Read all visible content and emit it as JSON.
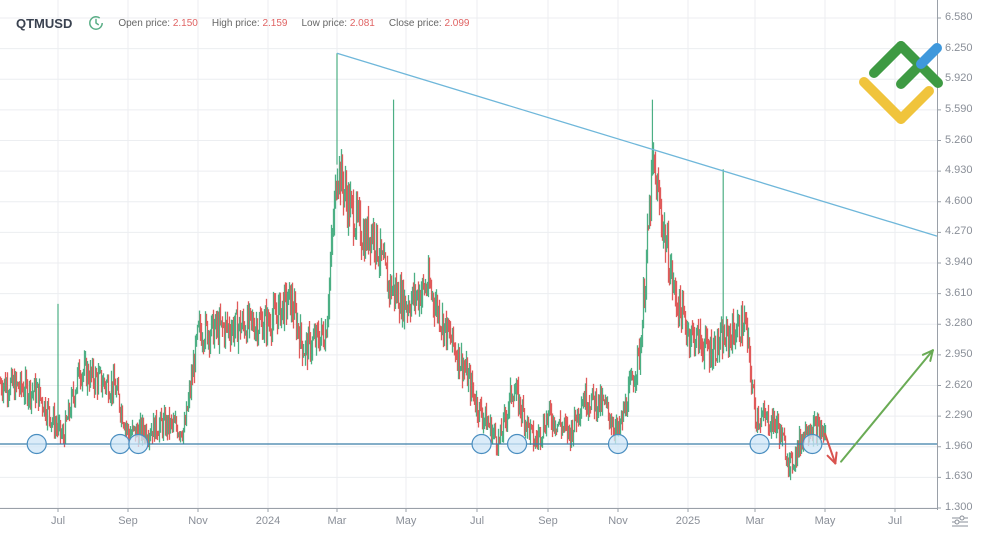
{
  "header": {
    "symbol": "QTMUSD",
    "clock_icon": "clock-refresh-icon",
    "open_label": "Open price:",
    "open_value": "2.150",
    "high_label": "High price:",
    "high_value": "2.159",
    "low_label": "Low price:",
    "low_value": "2.081",
    "close_label": "Close price:",
    "close_value": "2.099"
  },
  "colors": {
    "bull": "#4caf84",
    "bear": "#e05a5a",
    "trendline": "#6fb7da",
    "support_line": "#3a7ea8",
    "circle_fill": "#cfe6f7",
    "circle_stroke": "#4a8ec0",
    "arrow_up": "#6aab55",
    "arrow_down": "#d9534f",
    "grid": "#eceef1",
    "axis": "#8a8f98"
  },
  "axis": {
    "y_ticks": [
      "6.580",
      "6.250",
      "5.920",
      "5.590",
      "5.260",
      "4.930",
      "4.600",
      "4.270",
      "3.940",
      "3.610",
      "3.280",
      "2.950",
      "2.620",
      "2.290",
      "1.960",
      "1.630",
      "1.300"
    ],
    "x_ticks": [
      "Jul",
      "Sep",
      "Nov",
      "2024",
      "Mar",
      "May",
      "Jul",
      "Sep",
      "Nov",
      "2025",
      "Mar",
      "May",
      "Jul"
    ]
  },
  "logo": "company-logo-icon",
  "settings_icon": "chart-settings-icon",
  "chart_data": {
    "type": "candlestick",
    "title": "QTMUSD",
    "xlabel": "",
    "ylabel": "",
    "ylim": [
      1.3,
      6.58
    ],
    "x_range": [
      "2023-06",
      "2025-08"
    ],
    "grid": true,
    "x_ticks": [
      "Jul 2023",
      "Sep 2023",
      "Nov 2023",
      "2024",
      "Mar 2024",
      "May 2024",
      "Jul 2024",
      "Sep 2024",
      "Nov 2024",
      "2025",
      "Mar 2025",
      "May 2025",
      "Jul 2025"
    ],
    "y_ticks": [
      6.58,
      6.25,
      5.92,
      5.59,
      5.26,
      4.93,
      4.6,
      4.27,
      3.94,
      3.61,
      3.28,
      2.95,
      2.62,
      2.29,
      1.96,
      1.63,
      1.3
    ],
    "ohlc_last": {
      "open": 2.15,
      "high": 2.159,
      "low": 2.081,
      "close": 2.099
    },
    "approx_close_path": {
      "x": [
        "2023-06",
        "2023-06-20",
        "2023-07-05",
        "2023-07-20",
        "2023-08",
        "2023-08-20",
        "2023-09",
        "2023-09-20",
        "2023-10",
        "2023-10-20",
        "2023-11",
        "2023-12",
        "2024-01",
        "2024-01-20",
        "2024-02",
        "2024-02-20",
        "2024-03",
        "2024-03-10",
        "2024-03-25",
        "2024-04",
        "2024-04-15",
        "2024-05",
        "2024-05-20",
        "2024-06",
        "2024-06-20",
        "2024-07",
        "2024-07-20",
        "2024-08",
        "2024-08-20",
        "2024-09",
        "2024-09-20",
        "2024-10",
        "2024-10-20",
        "2024-11",
        "2024-11-20",
        "2024-12",
        "2024-12-20",
        "2025-01",
        "2025-01-20",
        "2025-02",
        "2025-02-20",
        "2025-03",
        "2025-03-20",
        "2025-04",
        "2025-04-15",
        "2025-05"
      ],
      "close": [
        2.65,
        2.55,
        2.05,
        2.8,
        2.7,
        2.6,
        2.1,
        2.15,
        2.2,
        2.15,
        3.2,
        3.25,
        3.3,
        3.55,
        3.0,
        3.2,
        5.0,
        4.6,
        4.2,
        4.3,
        3.7,
        3.5,
        3.7,
        3.3,
        2.8,
        2.4,
        2.0,
        2.6,
        2.0,
        2.3,
        2.1,
        2.5,
        2.4,
        2.1,
        3.0,
        5.0,
        3.6,
        3.2,
        3.0,
        3.1,
        3.3,
        2.3,
        2.2,
        1.75,
        2.2,
        2.1
      ],
      "notable_highs": [
        {
          "x": "2023-07",
          "y": 3.5
        },
        {
          "x": "2024-03",
          "y": 6.2
        },
        {
          "x": "2024-04-20",
          "y": 5.7
        },
        {
          "x": "2024-12",
          "y": 5.7
        },
        {
          "x": "2025-02",
          "y": 4.95
        }
      ],
      "notable_lows": [
        {
          "x": "2025-04",
          "y": 1.6
        }
      ]
    },
    "annotations": {
      "descending_trendline": {
        "from": {
          "x": "2024-03",
          "y": 6.2
        },
        "to": {
          "x": "2025-08",
          "y": 4.23
        }
      },
      "support_line": {
        "y": 1.99
      },
      "support_touch_circles": [
        "2023-06-20",
        "2023-08-25",
        "2023-09-10",
        "2024-07-05",
        "2024-08-05",
        "2024-11-01",
        "2025-03-05",
        "2025-04-20"
      ],
      "down_arrow": {
        "from": {
          "x": "2025-05-01",
          "y": 2.1
        },
        "to": {
          "x": "2025-05-10",
          "y": 1.78
        }
      },
      "up_arrow": {
        "from": {
          "x": "2025-05-15",
          "y": 1.8
        },
        "to": {
          "x": "2025-08",
          "y": 3.0
        }
      }
    }
  }
}
